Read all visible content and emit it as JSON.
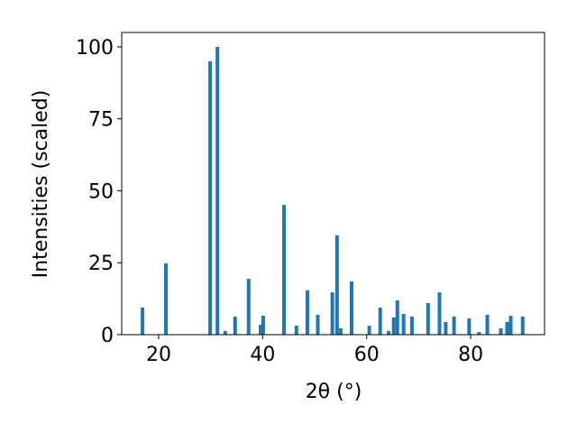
{
  "chart_data": {
    "type": "bar",
    "xlabel": "2θ (°)",
    "ylabel": "Intensities (scaled)",
    "x": [
      16.9,
      21.4,
      29.9,
      31.3,
      32.8,
      34.7,
      37.3,
      39.6,
      40.1,
      44.1,
      46.5,
      48.6,
      50.6,
      53.4,
      54.3,
      55.0,
      57.1,
      60.5,
      62.6,
      64.2,
      65.2,
      65.9,
      67.1,
      68.7,
      71.8,
      74.0,
      75.2,
      76.8,
      79.7,
      81.6,
      83.2,
      85.8,
      87.0,
      87.7,
      90.0
    ],
    "values": [
      9.4,
      24.8,
      95,
      100,
      1.3,
      6.3,
      19.4,
      3.4,
      6.6,
      45.1,
      3.1,
      15.4,
      6.9,
      14.7,
      34.5,
      2.2,
      18.5,
      3.1,
      9.4,
      1.3,
      6,
      11.9,
      7.2,
      6.3,
      11,
      14.7,
      4.4,
      6.3,
      5.6,
      0.9,
      6.9,
      2.2,
      4.4,
      6.6,
      6.3
    ],
    "color": "#1f77b4",
    "xlim": [
      12.9,
      94.2
    ],
    "xticks": [
      20,
      40,
      60,
      80
    ],
    "ylim": [
      0,
      105
    ],
    "yticks": [
      0,
      25,
      50,
      75,
      100
    ]
  }
}
